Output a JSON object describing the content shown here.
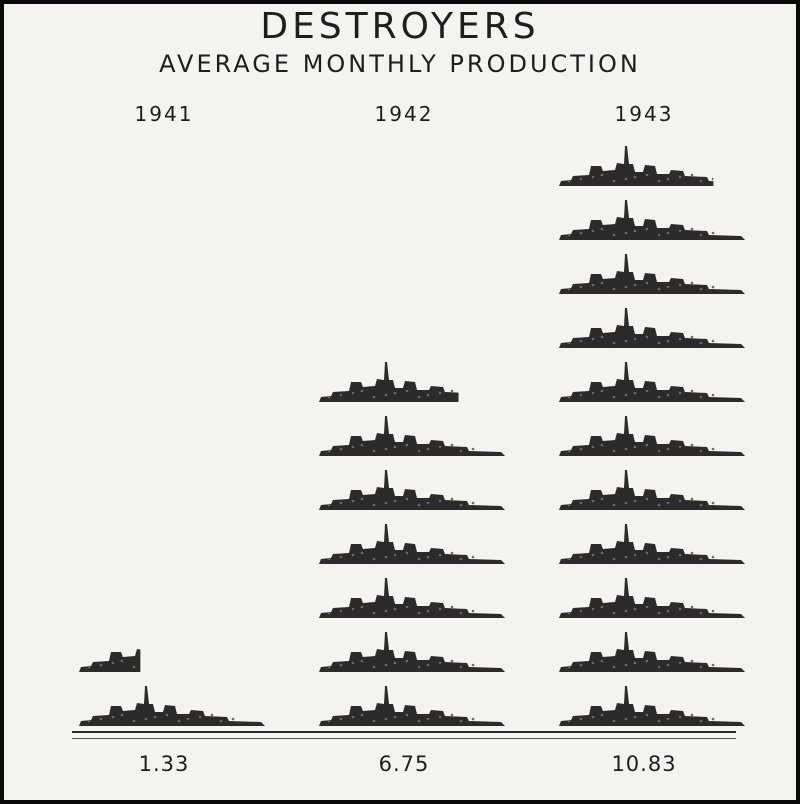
{
  "chart_data": {
    "type": "bar",
    "title": "DESTROYERS",
    "subtitle": "AVERAGE MONTHLY PRODUCTION",
    "categories": [
      "1941",
      "1942",
      "1943"
    ],
    "values": [
      1.33,
      6.75,
      10.83
    ],
    "value_labels": [
      "1.33",
      "6.75",
      "10.83"
    ],
    "unit_per_icon": 1,
    "icon": "destroyer-ship-icon",
    "grid": false,
    "legend": "none",
    "colors": {
      "ship": "#2b2b2b",
      "background": "#f4f3f0",
      "frame": "#0a0a0a"
    }
  }
}
